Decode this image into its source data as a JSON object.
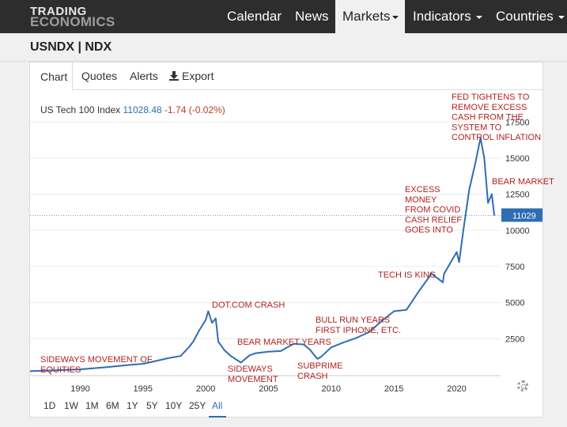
{
  "brand": {
    "line1": "TRADING",
    "line2": "ECONOMICS"
  },
  "nav": {
    "calendar": "Calendar",
    "news": "News",
    "markets": "Markets",
    "indicators": "Indicators",
    "countries": "Countries"
  },
  "symbol": "USNDX | NDX",
  "tabs": {
    "chart": "Chart",
    "quotes": "Quotes",
    "alerts": "Alerts",
    "export": "Export"
  },
  "quote": {
    "name": "US Tech 100 Index",
    "last": "11028.48",
    "change": "-1.74 (-0.02%)"
  },
  "badge": "11029",
  "ranges": [
    "1D",
    "1W",
    "1M",
    "6M",
    "1Y",
    "5Y",
    "10Y",
    "25Y",
    "All"
  ],
  "active_range": "All",
  "colors": {
    "line": "#2e6db4",
    "annotation": "#b22222",
    "nav_bg": "#2d2d2d",
    "badge": "#2e6db4"
  },
  "annotations": [
    {
      "id": "sideways-equities",
      "lines": [
        "SIDEWAYS MOVEMENT OF",
        "EQUITIES"
      ]
    },
    {
      "id": "dotcom-crash",
      "lines": [
        "DOT.COM CRASH"
      ]
    },
    {
      "id": "sideways-movement",
      "lines": [
        "SIDEWAYS",
        "MOVEMENT"
      ]
    },
    {
      "id": "bear-market-years",
      "lines": [
        "BEAR MARKET YEARS"
      ]
    },
    {
      "id": "subprime-crash",
      "lines": [
        "SUBPRIME",
        "CRASH"
      ]
    },
    {
      "id": "bull-run",
      "lines": [
        "BULL RUN YEARS",
        "FIRST IPHONE, ETC."
      ]
    },
    {
      "id": "tech-is-king",
      "lines": [
        "TECH IS KING"
      ]
    },
    {
      "id": "excess-money",
      "lines": [
        "EXCESS",
        "MONEY",
        "FROM COVID",
        "CASH RELIEF",
        "GOES INTO"
      ]
    },
    {
      "id": "fed-tightens",
      "lines": [
        "FED TIGHTENS TO",
        "REMOVE EXCESS",
        "CASH FROM THE",
        "SYSTEM TO",
        "CONTROL INFLATION"
      ]
    },
    {
      "id": "bear-market",
      "lines": [
        "BEAR MARKET"
      ]
    }
  ],
  "chart_data": {
    "type": "line",
    "series": [
      {
        "values_x": [
          1986,
          1988,
          1990,
          1992,
          1994,
          1995,
          1996,
          1997,
          1998,
          1998.7,
          1999,
          1999.5,
          2000,
          2000.2,
          2000.5,
          2000.8,
          2001,
          2001.5,
          2002,
          2002.8,
          2003.5,
          2004,
          2005,
          2006,
          2007,
          2007.8,
          2008.3,
          2008.9,
          2009.2,
          2010,
          2011,
          2012,
          2013,
          2014,
          2015,
          2016,
          2017,
          2018,
          2018.9,
          2019,
          2020,
          2020.2,
          2020.5,
          2021,
          2021.5,
          2021.9,
          2022.2,
          2022.5,
          2022.8,
          2023
        ],
        "values_y": [
          250,
          310,
          380,
          520,
          690,
          760,
          950,
          1150,
          1300,
          1950,
          2300,
          3100,
          3800,
          4400,
          3600,
          3900,
          2300,
          1700,
          1300,
          850,
          1350,
          1500,
          1600,
          1650,
          2150,
          2100,
          1750,
          1100,
          1250,
          1900,
          2250,
          2550,
          2950,
          3700,
          4400,
          4500,
          5800,
          7000,
          6400,
          7000,
          8500,
          7800,
          9800,
          12800,
          14700,
          16400,
          15000,
          11900,
          12500,
          11029
        ]
      }
    ],
    "xlim": [
      1986,
      2023.5
    ],
    "ylim": [
      0,
      18500
    ],
    "x_ticks": [
      1990,
      1995,
      2000,
      2005,
      2010,
      2015,
      2020
    ],
    "y_ticks": [
      2500,
      5000,
      7500,
      10000,
      12500,
      15000,
      17500
    ],
    "last_value": 11029,
    "grid": "y",
    "reference_line": 11029
  }
}
